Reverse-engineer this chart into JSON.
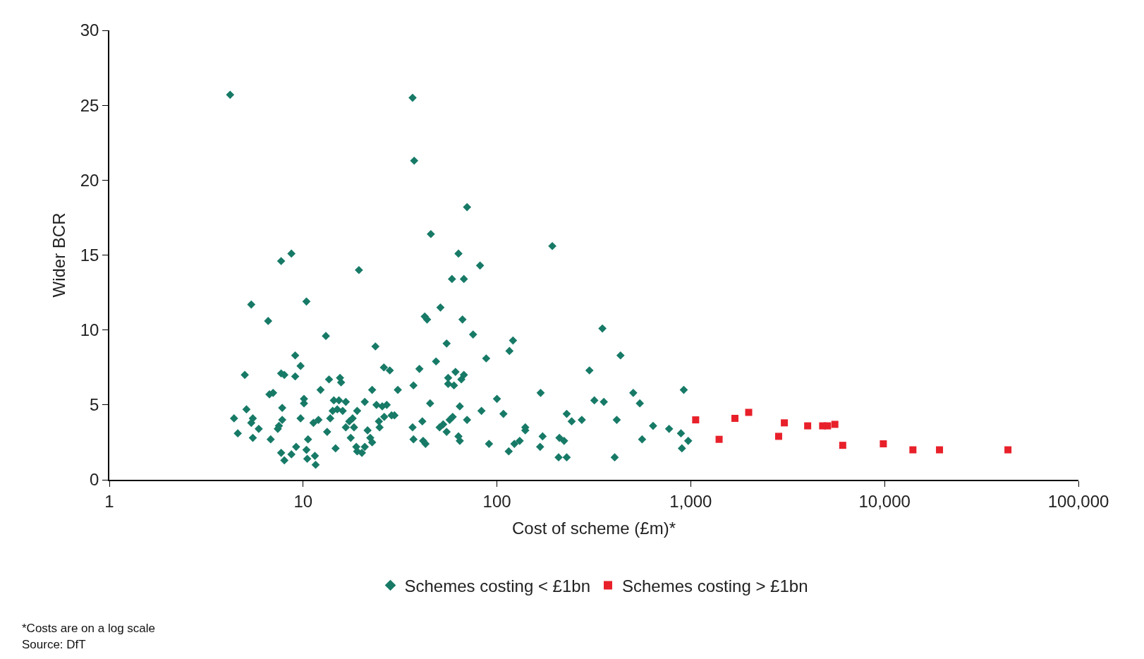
{
  "chart_data": {
    "type": "scatter",
    "xlabel": "Cost of scheme (£m)*",
    "ylabel": "Wider BCR",
    "log": "x",
    "legend": "bottom",
    "xlim": [
      1,
      100000
    ],
    "xticks": [
      1,
      10,
      100,
      {
        "value": 1000,
        "label": "1,000"
      },
      {
        "value": 10000,
        "label": "10,000"
      },
      {
        "value": 100000,
        "label": "100,000"
      }
    ],
    "ylim": [
      0,
      30
    ],
    "yticks": [
      0,
      5,
      10,
      15,
      20,
      25,
      30
    ],
    "annotations": [
      "*Costs are on a log scale",
      "Source: DfT"
    ],
    "series": [
      {
        "name": "Schemes costing < £1bn",
        "color": "#177a67",
        "marker": "diamond",
        "x": [
          4.2,
          4.4,
          4.6,
          5.0,
          5.1,
          5.4,
          5.5,
          5.5,
          5.4,
          5.9,
          6.6,
          6.7,
          7.0,
          6.8,
          7.4,
          7.7,
          8.7,
          7.7,
          8.0,
          7.8,
          7.7,
          8.0,
          7.8,
          7.5,
          9.1,
          9.1,
          9.7,
          9.2,
          8.7,
          9.7,
          10.1,
          10.1,
          10.4,
          10.6,
          10.4,
          10.5,
          11.3,
          11.5,
          11.6,
          12.0,
          12.3,
          13.1,
          13.3,
          13.6,
          13.8,
          14.2,
          14.4,
          14.7,
          15.0,
          15.5,
          15.7,
          15.3,
          16.0,
          16.6,
          16.6,
          17.3,
          17.6,
          18.0,
          18.3,
          18.8,
          19.0,
          19.0,
          19.4,
          20.1,
          20.8,
          20.8,
          21.5,
          22.2,
          22.7,
          22.7,
          23.6,
          23.9,
          24.6,
          24.8,
          25.6,
          26.1,
          26.2,
          27.0,
          28.0,
          28.6,
          29.6,
          30.8,
          36.7,
          37.4,
          37.1,
          36.7,
          37.1,
          39.8,
          41.2,
          41.6,
          42.4,
          43.6,
          42.8,
          45.2,
          45.6,
          48.5,
          51.1,
          50.6,
          52.8,
          55.0,
          55.0,
          56.0,
          56.0,
          57.0,
          58.6,
          59.1,
          60.0,
          61.1,
          63.3,
          63.3,
          64.3,
          64.3,
          65.5,
          67.5,
          66.4,
          67.5,
          70.1,
          70.1,
          75.3,
          81.8,
          83.2,
          88.0,
          91.0,
          100,
          108,
          116,
          121,
          115,
          123,
          131,
          140,
          140,
          168,
          167,
          172,
          193,
          210,
          208,
          222,
          229,
          229,
          243,
          274,
          300,
          318,
          350,
          356,
          405,
          415,
          434,
          505,
          546,
          561,
          639,
          773,
          920,
          890,
          900,
          970
        ],
        "values": [
          25.7,
          4.1,
          3.1,
          7.0,
          4.7,
          11.7,
          4.1,
          2.8,
          3.8,
          3.4,
          10.6,
          5.7,
          5.8,
          2.7,
          3.4,
          14.6,
          15.1,
          1.8,
          1.3,
          4.0,
          7.1,
          7.0,
          4.8,
          3.6,
          8.3,
          6.9,
          7.6,
          2.2,
          1.7,
          4.1,
          5.4,
          5.1,
          11.9,
          2.7,
          2.0,
          1.4,
          3.8,
          1.6,
          1.0,
          4.0,
          6.0,
          9.6,
          3.2,
          6.7,
          4.1,
          4.6,
          5.3,
          2.1,
          4.7,
          6.8,
          6.5,
          5.3,
          4.6,
          5.2,
          3.5,
          3.9,
          2.8,
          4.1,
          3.5,
          2.2,
          1.9,
          4.6,
          14.0,
          1.8,
          2.2,
          5.2,
          3.3,
          2.8,
          2.5,
          6.0,
          8.9,
          5.0,
          3.9,
          3.5,
          4.9,
          7.5,
          4.2,
          5.0,
          7.3,
          4.3,
          4.3,
          6.0,
          25.5,
          21.3,
          6.3,
          3.5,
          2.7,
          7.4,
          3.9,
          2.6,
          10.9,
          10.7,
          2.4,
          5.1,
          16.4,
          7.9,
          11.5,
          3.5,
          3.7,
          9.1,
          3.2,
          6.4,
          6.8,
          4.0,
          13.4,
          4.2,
          6.3,
          7.2,
          15.1,
          2.9,
          4.9,
          2.6,
          6.7,
          13.4,
          10.7,
          7.0,
          18.2,
          4.0,
          9.7,
          14.3,
          4.6,
          8.1,
          2.4,
          5.4,
          4.4,
          8.6,
          9.3,
          1.9,
          2.4,
          2.6,
          3.3,
          3.5,
          5.8,
          2.2,
          2.9,
          15.6,
          2.8,
          1.5,
          2.6,
          4.4,
          1.5,
          3.9,
          4.0,
          7.3,
          5.3,
          10.1,
          5.2,
          1.5,
          4.0,
          8.3,
          5.8,
          5.1,
          2.7,
          3.6,
          3.4,
          6.0,
          3.1,
          2.1,
          2.6
        ]
      },
      {
        "name": "Schemes costing > £1bn",
        "color": "#e8202a",
        "marker": "square",
        "x": [
          1060,
          1400,
          1690,
          1990,
          2840,
          3040,
          4010,
          4790,
          5080,
          5540,
          6080,
          9850,
          14000,
          19200,
          43300
        ],
        "values": [
          4.0,
          2.7,
          4.1,
          4.5,
          2.9,
          3.8,
          3.6,
          3.6,
          3.6,
          3.7,
          2.3,
          2.4,
          2.0,
          2.0,
          2.0
        ]
      }
    ]
  }
}
